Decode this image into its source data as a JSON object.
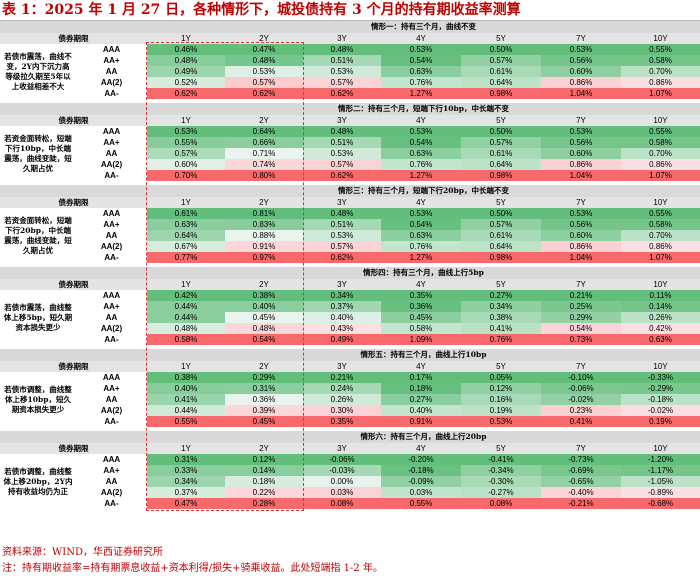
{
  "title": "表 1：2025 年 1 月 27 日，各种情形下，城投债持有 3 个月的持有期收益率测算",
  "column_label": "债券期限",
  "years": [
    "1Y",
    "2Y",
    "3Y",
    "4Y",
    "5Y",
    "7Y",
    "10Y"
  ],
  "ratings": [
    "AAA",
    "AA+",
    "AA",
    "AA(2)",
    "AA-"
  ],
  "scenarios": [
    {
      "header": "情形一：持有三个月，曲线不变",
      "description": "若债市震荡，曲线不变，2Y内下沉力高等级拉久期至5年以上收益相差不大",
      "rows": [
        [
          "0.46%",
          "0.47%",
          "0.48%",
          "0.53%",
          "0.50%",
          "0.53%",
          "0.55%"
        ],
        [
          "0.48%",
          "0.48%",
          "0.51%",
          "0.54%",
          "0.57%",
          "0.56%",
          "0.58%"
        ],
        [
          "0.49%",
          "0.53%",
          "0.53%",
          "0.63%",
          "0.61%",
          "0.60%",
          "0.70%"
        ],
        [
          "0.52%",
          "0.57%",
          "0.57%",
          "0.76%",
          "0.64%",
          "0.86%",
          "0.86%"
        ],
        [
          "0.62%",
          "0.62%",
          "0.62%",
          "1.27%",
          "0.98%",
          "1.04%",
          "1.07%"
        ]
      ]
    },
    {
      "header": "情形二：持有三个月，短端下行10bp，中长端不变",
      "description": "若资金面转松，短端下行10bp，中长端震荡，曲线变陡，短久期占优",
      "rows": [
        [
          "0.53%",
          "0.64%",
          "0.48%",
          "0.53%",
          "0.50%",
          "0.53%",
          "0.55%"
        ],
        [
          "0.55%",
          "0.66%",
          "0.51%",
          "0.54%",
          "0.57%",
          "0.56%",
          "0.58%"
        ],
        [
          "0.57%",
          "0.71%",
          "0.53%",
          "0.63%",
          "0.61%",
          "0.60%",
          "0.70%"
        ],
        [
          "0.60%",
          "0.74%",
          "0.57%",
          "0.76%",
          "0.64%",
          "0.86%",
          "0.86%"
        ],
        [
          "0.70%",
          "0.80%",
          "0.62%",
          "1.27%",
          "0.98%",
          "1.04%",
          "1.07%"
        ]
      ]
    },
    {
      "header": "情形三：持有三个月，短端下行20bp，中长端不变",
      "description": "若资金面转松，短端下行20bp，中长端震荡，曲线变陡，短久期占优",
      "rows": [
        [
          "0.61%",
          "0.81%",
          "0.48%",
          "0.53%",
          "0.50%",
          "0.53%",
          "0.55%"
        ],
        [
          "0.63%",
          "0.83%",
          "0.51%",
          "0.54%",
          "0.57%",
          "0.56%",
          "0.58%"
        ],
        [
          "0.64%",
          "0.88%",
          "0.53%",
          "0.63%",
          "0.61%",
          "0.60%",
          "0.70%"
        ],
        [
          "0.67%",
          "0.91%",
          "0.57%",
          "0.76%",
          "0.64%",
          "0.86%",
          "0.86%"
        ],
        [
          "0.77%",
          "0.97%",
          "0.62%",
          "1.27%",
          "0.98%",
          "1.04%",
          "1.07%"
        ]
      ]
    },
    {
      "header": "情形四：持有三个月，曲线上行5bp",
      "description": "若债市震荡，曲线整体上移5bp，短久期资本损失更少",
      "rows": [
        [
          "0.42%",
          "0.38%",
          "0.34%",
          "0.35%",
          "0.27%",
          "0.21%",
          "0.11%"
        ],
        [
          "0.44%",
          "0.40%",
          "0.37%",
          "0.36%",
          "0.34%",
          "0.25%",
          "0.14%"
        ],
        [
          "0.44%",
          "0.45%",
          "0.40%",
          "0.45%",
          "0.38%",
          "0.29%",
          "0.26%"
        ],
        [
          "0.48%",
          "0.48%",
          "0.43%",
          "0.58%",
          "0.41%",
          "0.54%",
          "0.42%"
        ],
        [
          "0.58%",
          "0.54%",
          "0.49%",
          "1.09%",
          "0.76%",
          "0.73%",
          "0.63%"
        ]
      ]
    },
    {
      "header": "情形五：持有三个月，曲线上行10bp",
      "description": "若债市调整，曲线整体上移10bp，短久期资本损失更少",
      "rows": [
        [
          "0.38%",
          "0.29%",
          "0.21%",
          "0.17%",
          "0.05%",
          "-0.10%",
          "-0.33%"
        ],
        [
          "0.40%",
          "0.31%",
          "0.24%",
          "0.18%",
          "0.12%",
          "-0.06%",
          "-0.29%"
        ],
        [
          "0.41%",
          "0.36%",
          "0.26%",
          "0.27%",
          "0.16%",
          "-0.02%",
          "-0.18%"
        ],
        [
          "0.44%",
          "0.39%",
          "0.30%",
          "0.40%",
          "0.19%",
          "0.23%",
          "-0.02%"
        ],
        [
          "0.55%",
          "0.45%",
          "0.35%",
          "0.91%",
          "0.53%",
          "0.41%",
          "0.19%"
        ]
      ]
    },
    {
      "header": "情形六：持有三个月，曲线上行20bp",
      "description": "若债市调整，曲线整体上移20bp，2Y内持有收益均仍为正",
      "rows": [
        [
          "0.31%",
          "0.12%",
          "-0.06%",
          "-0.20%",
          "-0.41%",
          "-0.73%",
          "-1.20%"
        ],
        [
          "0.33%",
          "0.14%",
          "-0.03%",
          "-0.18%",
          "-0.34%",
          "-0.69%",
          "-1.17%"
        ],
        [
          "0.34%",
          "0.18%",
          "0.00%",
          "-0.09%",
          "-0.30%",
          "-0.65%",
          "-1.05%"
        ],
        [
          "0.37%",
          "0.22%",
          "0.03%",
          "0.03%",
          "-0.27%",
          "-0.40%",
          "-0.89%"
        ],
        [
          "0.47%",
          "0.28%",
          "0.08%",
          "0.55%",
          "0.08%",
          "-0.21%",
          "-0.68%"
        ]
      ]
    }
  ],
  "source": "资料来源：WIND，华西证券研究所",
  "note": "注：持有期收益率=持有期票息收益+资本利得/损失+骑乘收益。此处短端指 1-2 年。"
}
